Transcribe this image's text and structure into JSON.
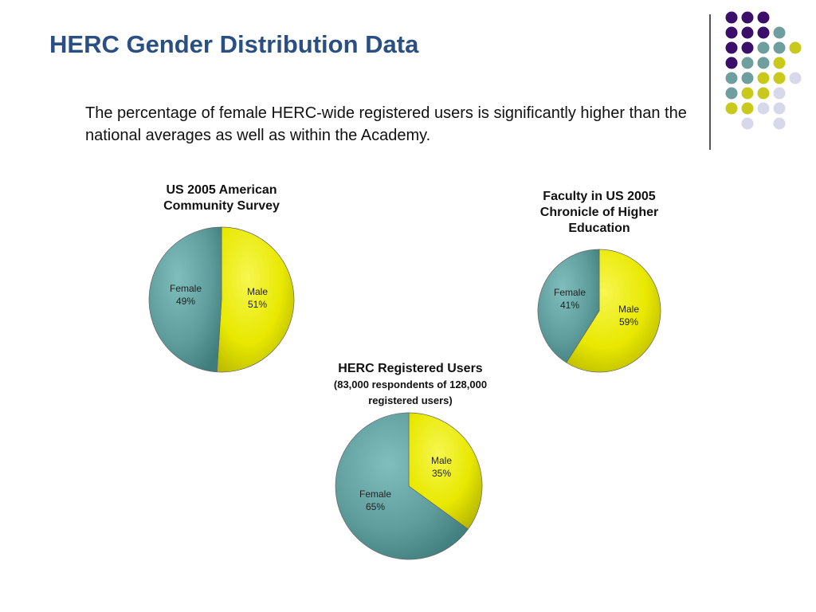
{
  "slide": {
    "title": "HERC Gender Distribution Data",
    "subtitle": "The percentage of female HERC-wide registered users is significantly higher than the national averages as well as within the Academy."
  },
  "colors": {
    "female": "#5f9c9c",
    "male": "#e8e800",
    "title": "#2a4f82",
    "dot_purple": "#3b0f69",
    "dot_teal": "#6e9e9e",
    "dot_yellow": "#c9c91c",
    "dot_lavender": "#d8d8ec"
  },
  "decor_dots": [
    [
      "purple",
      "purple",
      "purple",
      "",
      ""
    ],
    [
      "purple",
      "purple",
      "purple",
      "teal",
      ""
    ],
    [
      "purple",
      "purple",
      "teal",
      "teal",
      "yellow"
    ],
    [
      "purple",
      "teal",
      "teal",
      "yellow",
      ""
    ],
    [
      "teal",
      "teal",
      "yellow",
      "yellow",
      "lavender"
    ],
    [
      "teal",
      "yellow",
      "yellow",
      "lavender",
      ""
    ],
    [
      "yellow",
      "yellow",
      "lavender",
      "lavender",
      ""
    ],
    [
      "",
      "lavender",
      "",
      "lavender",
      ""
    ]
  ],
  "chart_data": [
    {
      "type": "pie",
      "title": "US 2005 American Community Survey",
      "subtitle": "",
      "slices": [
        {
          "label": "Male",
          "value": 51,
          "text": "51%"
        },
        {
          "label": "Female",
          "value": 49,
          "text": "49%"
        }
      ]
    },
    {
      "type": "pie",
      "title": "Faculty in US 2005 Chronicle of Higher Education",
      "subtitle": "",
      "slices": [
        {
          "label": "Male",
          "value": 59,
          "text": "59%"
        },
        {
          "label": "Female",
          "value": 41,
          "text": "41%"
        }
      ]
    },
    {
      "type": "pie",
      "title": "HERC Registered Users",
      "subtitle": "(83,000 respondents of 128,000 registered users)",
      "slices": [
        {
          "label": "Male",
          "value": 35,
          "text": "35%"
        },
        {
          "label": "Female",
          "value": 65,
          "text": "65%"
        }
      ]
    }
  ]
}
